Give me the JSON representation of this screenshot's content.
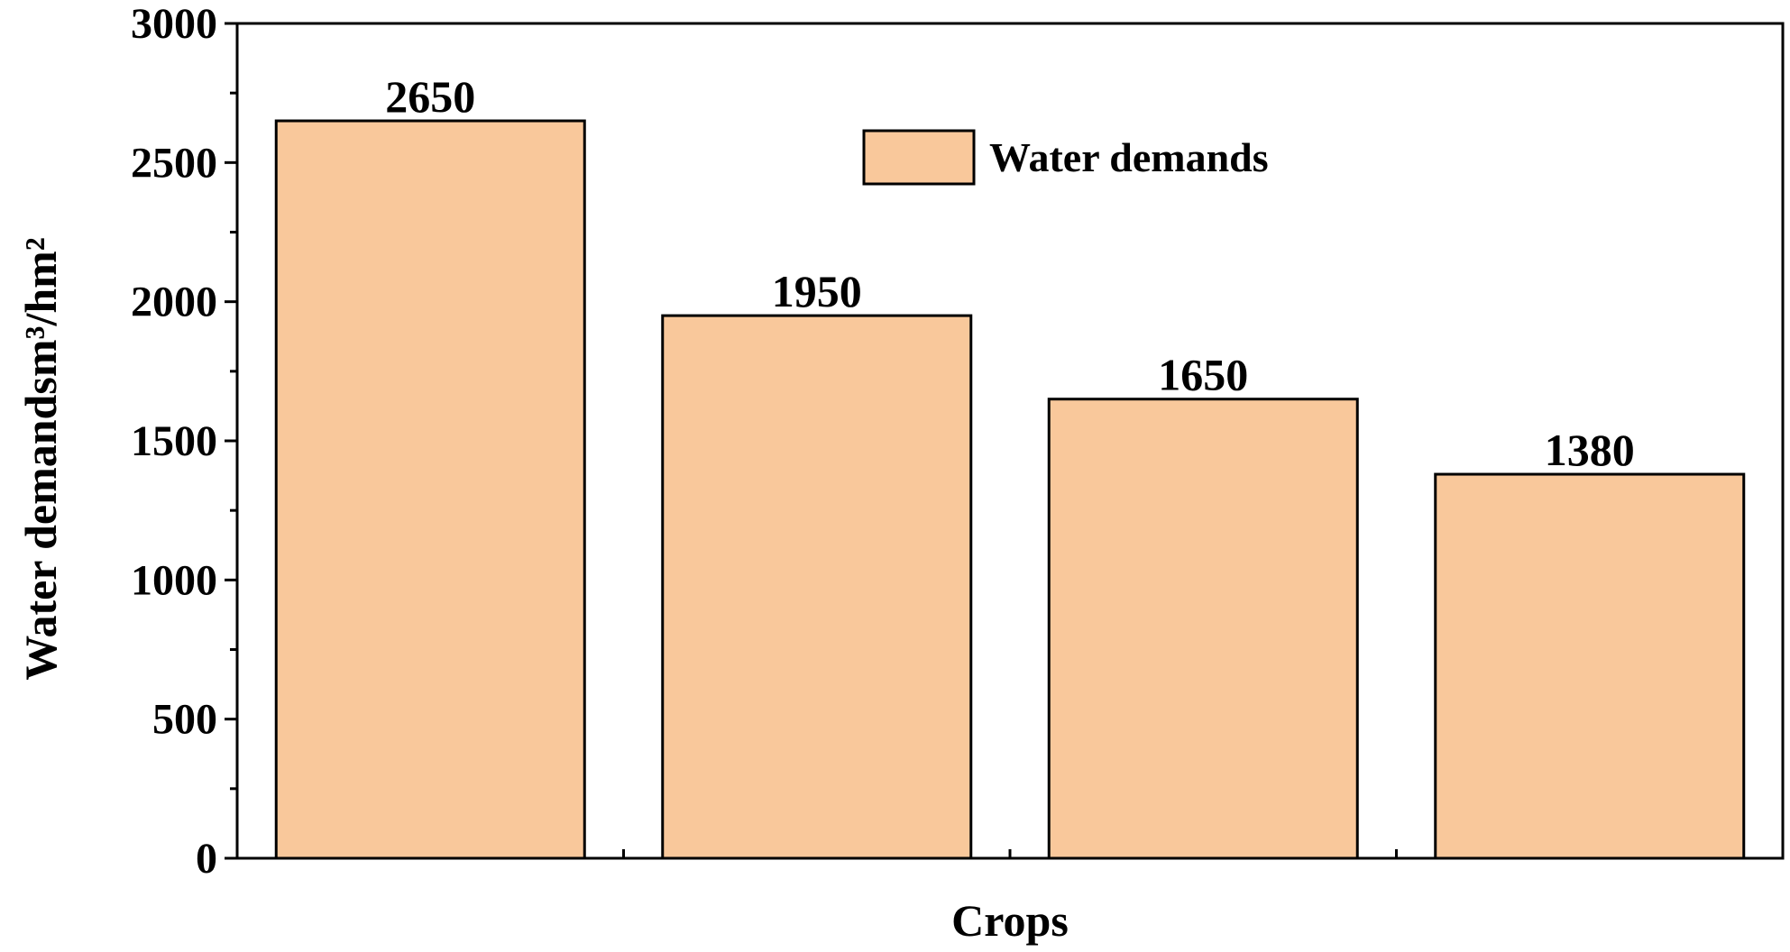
{
  "chart_data": {
    "type": "bar",
    "title": "",
    "categories": [
      "",
      "",
      "",
      ""
    ],
    "series": [
      {
        "name": "Water demands",
        "values": [
          2650,
          1950,
          1650,
          1380
        ],
        "color": "#f9c89b"
      }
    ],
    "data_labels": [
      "2650",
      "1950",
      "1650",
      "1380"
    ],
    "xlabel": "Crops",
    "ylabel": "Water demandsm³/hm²",
    "ylim": [
      0,
      3000
    ],
    "yticks": [
      0,
      500,
      1000,
      1500,
      2000,
      2500,
      3000
    ],
    "grid": false,
    "legend_position": "top-center",
    "bar_edge_color": "#000000"
  }
}
